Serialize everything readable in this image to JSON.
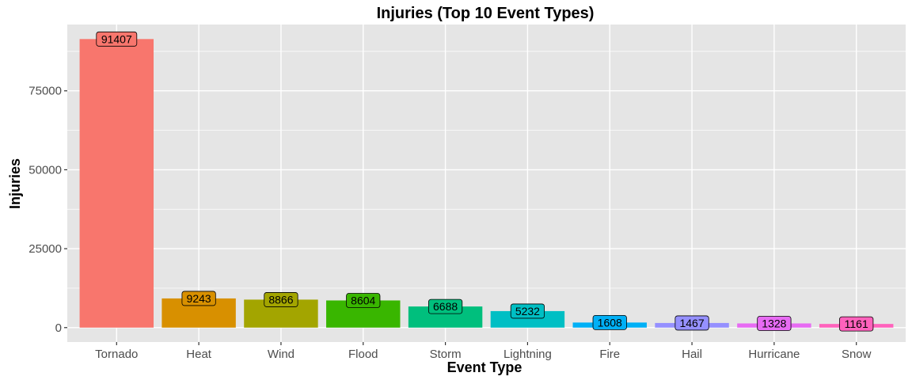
{
  "chart_data": {
    "type": "bar",
    "title": "Injuries (Top 10 Event Types)",
    "xlabel": "Event Type",
    "ylabel": "Injuries",
    "categories": [
      "Tornado",
      "Heat",
      "Wind",
      "Flood",
      "Storm",
      "Lightning",
      "Fire",
      "Hail",
      "Hurricane",
      "Snow"
    ],
    "values": [
      91407,
      9243,
      8866,
      8604,
      6688,
      5232,
      1608,
      1467,
      1328,
      1161
    ],
    "colors": [
      "#F8766D",
      "#D89000",
      "#A3A500",
      "#39B600",
      "#00BF7D",
      "#00BFC4",
      "#00B0F6",
      "#9590FF",
      "#E76BF3",
      "#FF62BC"
    ],
    "yticks": [
      0,
      25000,
      50000,
      75000
    ],
    "ytick_labels": [
      "0",
      "25000",
      "50000",
      "75000"
    ],
    "ylim": [
      -4570,
      96000
    ],
    "grid": true,
    "legend": "none",
    "panel_background": "#E5E5E5",
    "grid_color": "#FFFFFF"
  }
}
